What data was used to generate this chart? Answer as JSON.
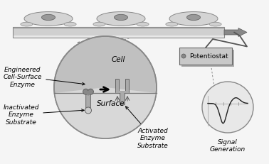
{
  "bg_color": "#f5f5f5",
  "bar_face": "#d0d0d0",
  "bar_edge": "#888888",
  "cell_face": "#cccccc",
  "cell_edge": "#888888",
  "nucleus_face": "#999999",
  "circle_upper_face": "#c0c0c0",
  "circle_lower_face": "#d8d8d8",
  "circle_edge": "#888888",
  "enzyme_stem_face": "#aaaaaa",
  "enzyme_stem_edge": "#555555",
  "enzyme_head_face": "#888888",
  "enzyme_head_edge": "#555555",
  "enzyme_conn_face": "#cccccc",
  "pot_face": "#c8c8c8",
  "pot_edge": "#666666",
  "sig_face": "#e8e8e8",
  "sig_edge": "#888888",
  "arrow_color": "#555555",
  "label_color": "#000000",
  "labels": {
    "engineered": "Engineered\nCell-Surface\nEnzyme",
    "inactivated": "Inactivated\nEnzyme\nSubstrate",
    "activated": "Activated\nEnzyme\nSubstrate",
    "cell": "Cell",
    "surface": "Surface",
    "potentiostat": "Potentiostat",
    "signal": "Signal\nGeneration"
  },
  "lfs": 6.5,
  "ifs": 7.5,
  "fig_w": 3.78,
  "fig_h": 2.32,
  "dpi": 100
}
